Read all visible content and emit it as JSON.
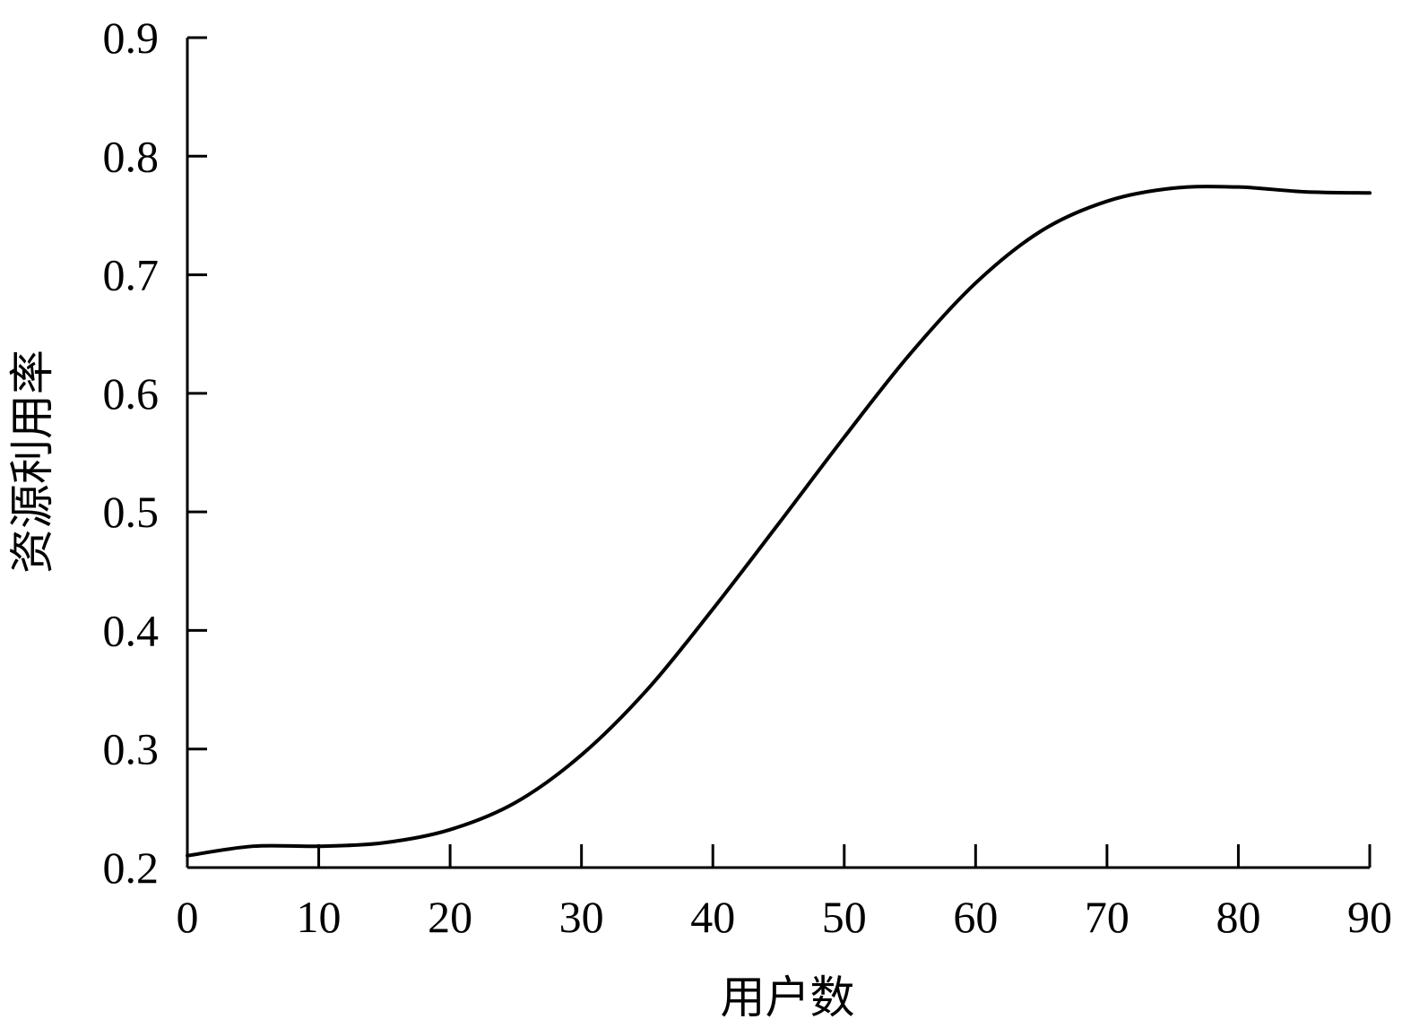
{
  "chart_data": {
    "type": "line",
    "title": "",
    "xlabel": "用户数",
    "ylabel": "资源利用率",
    "xlim": [
      0,
      90
    ],
    "ylim": [
      0.2,
      0.9
    ],
    "x_ticks": [
      0,
      10,
      20,
      30,
      40,
      50,
      60,
      70,
      80,
      90
    ],
    "x_tick_labels": [
      "0",
      "10",
      "20",
      "30",
      "40",
      "50",
      "60",
      "70",
      "80",
      "90"
    ],
    "y_ticks": [
      0.2,
      0.3,
      0.4,
      0.5,
      0.6,
      0.7,
      0.8,
      0.9
    ],
    "y_tick_labels": [
      "0.2",
      "0.3",
      "0.4",
      "0.5",
      "0.6",
      "0.7",
      "0.8",
      "0.9"
    ],
    "grid": false,
    "legend": "none",
    "series": [
      {
        "color": "#000000",
        "x": [
          0,
          5,
          10,
          15,
          20,
          25,
          30,
          35,
          40,
          45,
          50,
          55,
          60,
          65,
          70,
          75,
          80,
          85,
          90
        ],
        "values": [
          0.21,
          0.218,
          0.218,
          0.221,
          0.232,
          0.255,
          0.295,
          0.35,
          0.418,
          0.49,
          0.563,
          0.633,
          0.693,
          0.737,
          0.762,
          0.773,
          0.774,
          0.77,
          0.769
        ]
      }
    ]
  }
}
